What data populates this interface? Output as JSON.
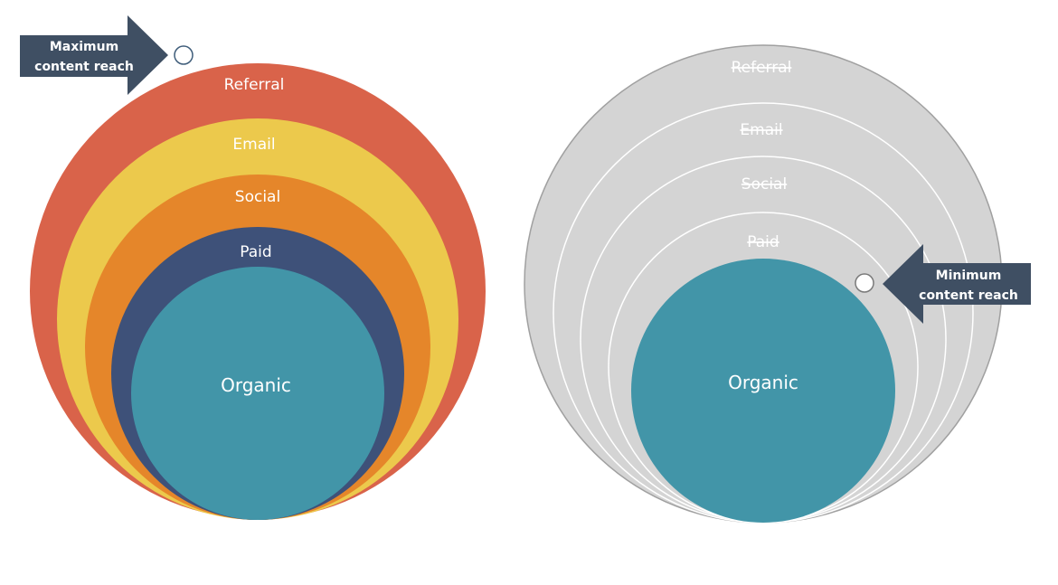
{
  "colors": {
    "referral": "#d9634a",
    "email": "#ecc94c",
    "social": "#e5862a",
    "paid": "#3e5179",
    "organic": "#4295a8",
    "inactive": "#d4d4d4",
    "callout": "#3f4f63"
  },
  "left_diagram": {
    "callout": [
      "Maximum",
      "content reach"
    ],
    "layers": {
      "referral": "Referral",
      "email": "Email",
      "social": "Social",
      "paid": "Paid",
      "organic": "Organic"
    }
  },
  "right_diagram": {
    "callout": [
      "Minimum",
      "content reach"
    ],
    "layers": {
      "referral": "Referral",
      "email": "Email",
      "social": "Social",
      "paid": "Paid",
      "organic": "Organic"
    }
  }
}
